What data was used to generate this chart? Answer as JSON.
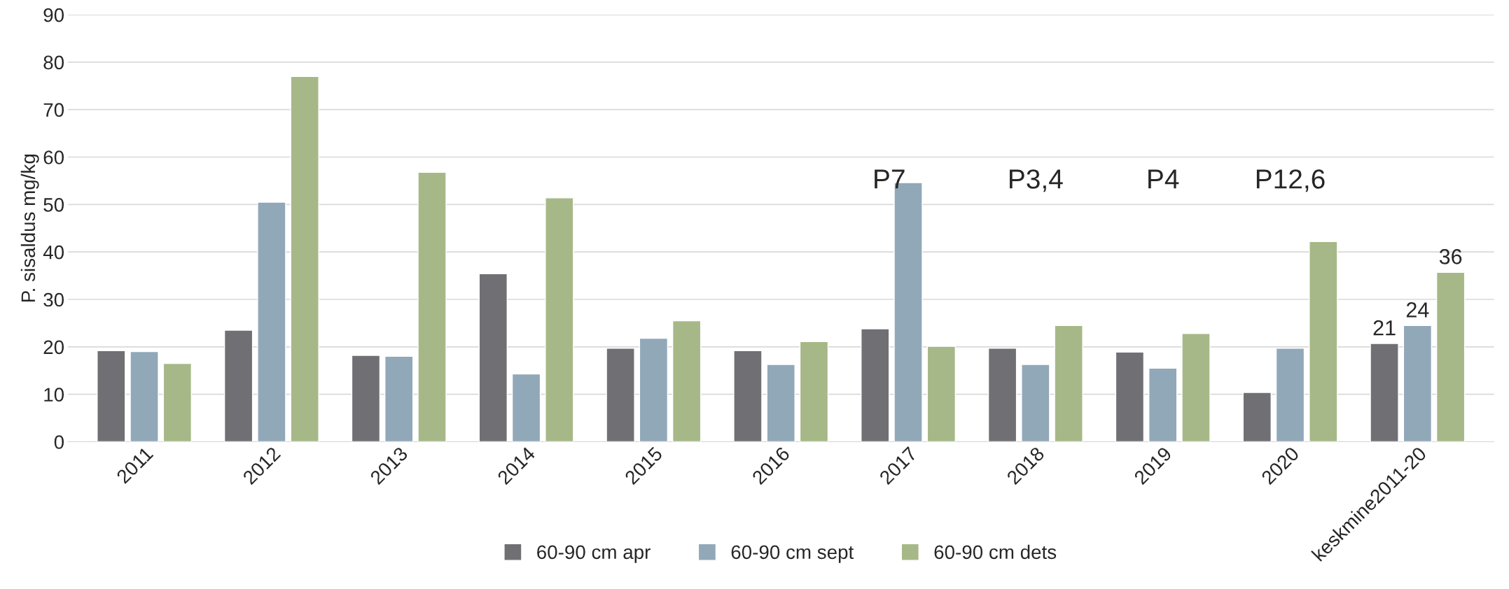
{
  "chart_data": {
    "type": "bar",
    "ylabel": "P. sisaldus mg/kg",
    "categories": [
      "2011",
      "2012",
      "2013",
      "2014",
      "2015",
      "2016",
      "2017",
      "2018",
      "2019",
      "2020",
      "keskmine2011-20"
    ],
    "series": [
      {
        "name": "60-90 cm apr",
        "color": "#6f6f74",
        "values": [
          19.2,
          23.5,
          18.2,
          35.4,
          19.7,
          19.2,
          23.8,
          19.7,
          18.9,
          10.4,
          20.7
        ],
        "value_labels": [
          null,
          null,
          null,
          null,
          null,
          null,
          null,
          null,
          null,
          null,
          "21"
        ]
      },
      {
        "name": "60-90 cm sept",
        "color": "#91a8b9",
        "values": [
          19.0,
          50.5,
          18.0,
          14.3,
          21.8,
          16.3,
          54.6,
          16.3,
          15.5,
          19.7,
          24.5
        ],
        "value_labels": [
          null,
          null,
          null,
          null,
          null,
          null,
          null,
          null,
          null,
          null,
          "24"
        ]
      },
      {
        "name": "60-90 cm dets",
        "color": "#a6b887",
        "values": [
          16.5,
          77.0,
          56.8,
          51.4,
          25.5,
          21.1,
          20.1,
          24.5,
          22.8,
          42.2,
          35.7
        ],
        "value_labels": [
          null,
          null,
          null,
          null,
          null,
          null,
          null,
          null,
          null,
          null,
          "36"
        ]
      }
    ],
    "ylim": [
      0,
      90
    ],
    "yticks": [
      0,
      10,
      20,
      30,
      40,
      50,
      60,
      70,
      80,
      90
    ],
    "grid": "y",
    "legend": "bottom",
    "annotations": [
      "P7",
      "P3,4",
      "P4",
      "P12,6"
    ]
  }
}
